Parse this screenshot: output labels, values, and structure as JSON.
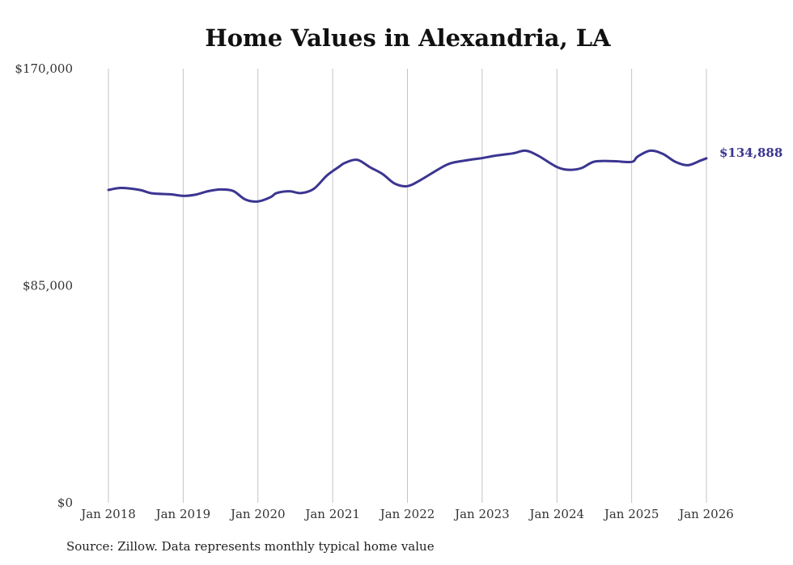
{
  "chart_data": {
    "type": "line",
    "title": "Home Values in Alexandria, LA",
    "xlabel": "",
    "ylabel": "",
    "ylim": [
      0,
      170000
    ],
    "y_ticks": [
      {
        "value": 0,
        "label": "$0"
      },
      {
        "value": 85000,
        "label": "$85,000"
      },
      {
        "value": 170000,
        "label": "$170,000"
      }
    ],
    "x_ticks": [
      {
        "value": 2018,
        "label": "Jan 2018"
      },
      {
        "value": 2019,
        "label": "Jan 2019"
      },
      {
        "value": 2020,
        "label": "Jan 2020"
      },
      {
        "value": 2021,
        "label": "Jan 2021"
      },
      {
        "value": 2022,
        "label": "Jan 2022"
      },
      {
        "value": 2023,
        "label": "Jan 2023"
      },
      {
        "value": 2024,
        "label": "Jan 2024"
      },
      {
        "value": 2025,
        "label": "Jan 2025"
      },
      {
        "value": 2026,
        "label": "Jan 2026"
      }
    ],
    "xlim": [
      2018,
      2026
    ],
    "grid": "vertical",
    "series": [
      {
        "name": "Typical home value",
        "color": "#3b3591",
        "x": [
          2018.0,
          2018.17,
          2018.42,
          2018.58,
          2018.83,
          2019.0,
          2019.17,
          2019.33,
          2019.5,
          2019.67,
          2019.83,
          2020.0,
          2020.17,
          2020.25,
          2020.42,
          2020.58,
          2020.75,
          2020.92,
          2021.08,
          2021.17,
          2021.33,
          2021.5,
          2021.67,
          2021.83,
          2022.0,
          2022.17,
          2022.42,
          2022.58,
          2022.83,
          2023.0,
          2023.17,
          2023.42,
          2023.58,
          2023.75,
          2024.0,
          2024.17,
          2024.33,
          2024.5,
          2024.75,
          2025.0,
          2025.08,
          2025.25,
          2025.42,
          2025.58,
          2025.75,
          2025.92,
          2026.0
        ],
        "values": [
          122500,
          123300,
          122500,
          121200,
          120800,
          120200,
          120700,
          122000,
          122700,
          122100,
          118800,
          118000,
          119700,
          121300,
          122000,
          121300,
          123000,
          128100,
          131500,
          133200,
          134300,
          131400,
          128700,
          125000,
          124000,
          126300,
          130700,
          133000,
          134300,
          135000,
          135900,
          136900,
          137900,
          135900,
          131500,
          130400,
          131100,
          133600,
          133800,
          133500,
          135600,
          137900,
          136600,
          133600,
          132200,
          134000,
          134888
        ]
      }
    ],
    "end_label": "$134,888",
    "source": "Source: Zillow. Data represents monthly typical home value"
  }
}
